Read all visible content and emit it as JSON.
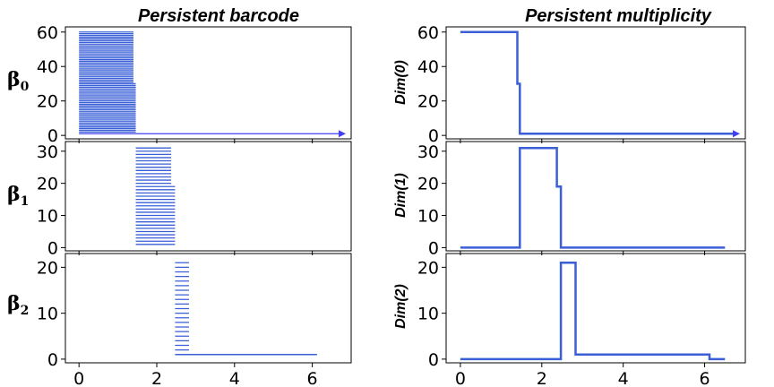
{
  "titles": {
    "left": "Persistent barcode",
    "right": "Persistent multiplicity"
  },
  "row_labels": {
    "b0": {
      "main": "β",
      "sub": "0"
    },
    "b1": {
      "main": "β",
      "sub": "1"
    },
    "b2": {
      "main": "β",
      "sub": "2"
    }
  },
  "ylabels": {
    "r0": "Dim(0)",
    "r1": "Dim(1)",
    "r2": "Dim(2)"
  },
  "colors": {
    "line": "#3a5fd6",
    "bar": "#3a5fd6",
    "arrow": "#4040ee"
  },
  "chart_data": [
    {
      "type": "barcode",
      "row": 0,
      "col": 0,
      "title_ref": "titles.left",
      "ylabel_ref": "row_labels.b0",
      "ylim": [
        -2,
        63
      ],
      "xlim": [
        -0.35,
        7.0
      ],
      "yticks": [
        0,
        20,
        40,
        60
      ],
      "xticks": [
        0,
        2,
        4,
        6
      ],
      "show_xticklabels": false,
      "bar_groups": [
        {
          "count": 30,
          "birth": 0,
          "death": 1.4,
          "y_start": 31
        },
        {
          "count": 29,
          "birth": 0,
          "death": 1.46,
          "y_start": 2
        }
      ],
      "infinite_bar": {
        "birth": 0,
        "y": 1
      }
    },
    {
      "type": "line",
      "row": 0,
      "col": 1,
      "ylabel_ref": "ylabels.r0",
      "ylim": [
        -2,
        63
      ],
      "xlim": [
        -0.35,
        7.0
      ],
      "yticks": [
        0,
        20,
        40,
        60
      ],
      "xticks": [
        0,
        2,
        4,
        6
      ],
      "show_xticklabels": false,
      "step_x": [
        0,
        1.4,
        1.4,
        1.46,
        1.46
      ],
      "step_y": [
        60,
        60,
        30,
        30,
        1
      ],
      "arrow": true
    },
    {
      "type": "barcode",
      "row": 1,
      "col": 0,
      "ylabel_ref": "row_labels.b1",
      "ylim": [
        -1,
        33
      ],
      "xlim": [
        -0.35,
        7.0
      ],
      "yticks": [
        0,
        10,
        20,
        30
      ],
      "xticks": [
        0,
        2,
        4,
        6
      ],
      "show_xticklabels": false,
      "bar_groups": [
        {
          "count": 12,
          "birth": 1.46,
          "death": 2.37,
          "y_start": 20
        },
        {
          "count": 19,
          "birth": 1.46,
          "death": 2.47,
          "y_start": 1
        }
      ]
    },
    {
      "type": "line",
      "row": 1,
      "col": 1,
      "ylabel_ref": "ylabels.r1",
      "ylim": [
        -1,
        33
      ],
      "xlim": [
        -0.35,
        7.0
      ],
      "yticks": [
        0,
        10,
        20,
        30
      ],
      "xticks": [
        0,
        2,
        4,
        6
      ],
      "show_xticklabels": false,
      "step_x": [
        0,
        1.46,
        1.46,
        2.37,
        2.37,
        2.47,
        2.47,
        6.5
      ],
      "step_y": [
        0,
        0,
        31,
        31,
        19,
        19,
        0,
        0
      ]
    },
    {
      "type": "barcode",
      "row": 2,
      "col": 0,
      "ylabel_ref": "row_labels.b2",
      "ylim": [
        -0.8,
        23
      ],
      "xlim": [
        -0.35,
        7.0
      ],
      "yticks": [
        0,
        10,
        20
      ],
      "xticks": [
        0,
        2,
        4,
        6
      ],
      "show_xticklabels": true,
      "bar_groups": [
        {
          "count": 20,
          "birth": 2.47,
          "death": 2.83,
          "y_start": 2
        }
      ],
      "long_bar": {
        "birth": 2.47,
        "death": 6.12,
        "y": 1
      }
    },
    {
      "type": "line",
      "row": 2,
      "col": 1,
      "ylabel_ref": "ylabels.r2",
      "ylim": [
        -0.8,
        23
      ],
      "xlim": [
        -0.35,
        7.0
      ],
      "yticks": [
        0,
        10,
        20
      ],
      "xticks": [
        0,
        2,
        4,
        6
      ],
      "show_xticklabels": true,
      "step_x": [
        0,
        2.47,
        2.47,
        2.83,
        2.83,
        6.12,
        6.12,
        6.5
      ],
      "step_y": [
        0,
        0,
        21,
        21,
        1,
        1,
        0,
        0
      ]
    }
  ]
}
